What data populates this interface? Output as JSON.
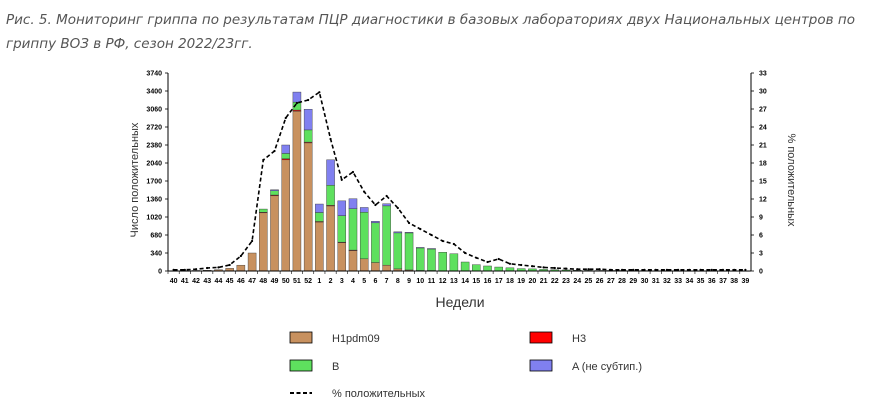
{
  "caption": "Рис. 5. Мониторинг гриппа по результатам ПЦР диагностики в базовых лабораториях двух Национальных центров по гриппу ВОЗ в РФ, сезон 2022/23гг.",
  "chart_data": {
    "type": "bar",
    "stacked": true,
    "categories": [
      "40",
      "41",
      "42",
      "43",
      "44",
      "45",
      "46",
      "47",
      "48",
      "49",
      "50",
      "51",
      "52",
      "1",
      "2",
      "3",
      "4",
      "5",
      "6",
      "7",
      "8",
      "9",
      "10",
      "11",
      "12",
      "13",
      "14",
      "15",
      "16",
      "17",
      "18",
      "19",
      "20",
      "21",
      "22",
      "23",
      "24",
      "25",
      "26",
      "27",
      "28",
      "29",
      "30",
      "31",
      "32",
      "33",
      "34",
      "35",
      "36",
      "37",
      "38",
      "39"
    ],
    "xlabel": "Недели",
    "ylabel": "Число положительных",
    "ylabel_right": "% положительных",
    "ylim": [
      0,
      3740
    ],
    "yticks": [
      0,
      340,
      680,
      1020,
      1360,
      1700,
      2040,
      2380,
      2720,
      3060,
      3400,
      3740
    ],
    "ylim_right": [
      0,
      33
    ],
    "yticks_right": [
      0,
      3,
      6,
      9,
      12,
      15,
      18,
      21,
      24,
      27,
      30,
      33
    ],
    "series": [
      {
        "name": "H1pdm09",
        "color": "#c8915f",
        "values": [
          5,
          5,
          10,
          15,
          25,
          50,
          110,
          340,
          1100,
          1420,
          2100,
          3020,
          2420,
          930,
          1230,
          540,
          390,
          230,
          160,
          110,
          40,
          20,
          10,
          10,
          5,
          5,
          0,
          0,
          0,
          0,
          0,
          0,
          0,
          0,
          0,
          0,
          0,
          0,
          0,
          0,
          0,
          0,
          0,
          0,
          0,
          0,
          0,
          0,
          0,
          0,
          0,
          0
        ]
      },
      {
        "name": "H3",
        "color": "#ff0000",
        "values": [
          0,
          0,
          0,
          0,
          0,
          0,
          0,
          0,
          10,
          15,
          20,
          20,
          15,
          5,
          10,
          5,
          5,
          0,
          0,
          0,
          0,
          0,
          0,
          0,
          0,
          0,
          0,
          0,
          0,
          0,
          0,
          0,
          0,
          0,
          0,
          0,
          0,
          0,
          0,
          0,
          0,
          0,
          0,
          0,
          0,
          0,
          0,
          0,
          0,
          0,
          0,
          0
        ]
      },
      {
        "name": "B",
        "color": "#5ee05e",
        "values": [
          0,
          0,
          0,
          0,
          0,
          0,
          0,
          0,
          60,
          80,
          100,
          150,
          230,
          170,
          380,
          500,
          780,
          880,
          750,
          1120,
          680,
          700,
          430,
          410,
          350,
          320,
          170,
          120,
          95,
          75,
          60,
          45,
          40,
          30,
          25,
          20,
          15,
          12,
          10,
          10,
          10,
          8,
          8,
          5,
          5,
          5,
          5,
          5,
          5,
          5,
          5,
          5
        ]
      },
      {
        "name": "A (не субтип.)",
        "color": "#8080f0",
        "values": [
          0,
          0,
          0,
          0,
          0,
          0,
          0,
          0,
          0,
          20,
          160,
          190,
          390,
          160,
          480,
          280,
          190,
          90,
          30,
          40,
          20,
          10,
          5,
          5,
          0,
          0,
          0,
          0,
          0,
          0,
          0,
          0,
          0,
          0,
          0,
          0,
          0,
          0,
          0,
          0,
          0,
          0,
          0,
          0,
          0,
          0,
          0,
          0,
          0,
          0,
          0,
          0
        ]
      }
    ],
    "percent_positive": {
      "name": "% положительных",
      "values": [
        0.2,
        0.2,
        0.3,
        0.5,
        0.6,
        1.0,
        2.5,
        5.0,
        18.5,
        20.0,
        25.5,
        28.0,
        28.5,
        29.8,
        22.0,
        15.2,
        16.5,
        13.2,
        11.0,
        12.5,
        10.5,
        8.0,
        7.0,
        6.0,
        5.0,
        4.5,
        3.0,
        2.2,
        1.5,
        2.0,
        1.2,
        1.0,
        0.8,
        0.6,
        0.5,
        0.4,
        0.3,
        0.3,
        0.3,
        0.2,
        0.2,
        0.2,
        0.2,
        0.2,
        0.2,
        0.2,
        0.2,
        0.2,
        0.2,
        0.2,
        0.2,
        0.2
      ]
    },
    "legend": [
      {
        "label": "H1pdm09",
        "color": "#c8915f",
        "kind": "box"
      },
      {
        "label": "H3",
        "color": "#ff0000",
        "kind": "box"
      },
      {
        "label": "B",
        "color": "#5ee05e",
        "kind": "box"
      },
      {
        "label": "A (не субтип.)",
        "color": "#8080f0",
        "kind": "box"
      },
      {
        "label": "% положительных",
        "color": "#000000",
        "kind": "dash"
      }
    ]
  }
}
